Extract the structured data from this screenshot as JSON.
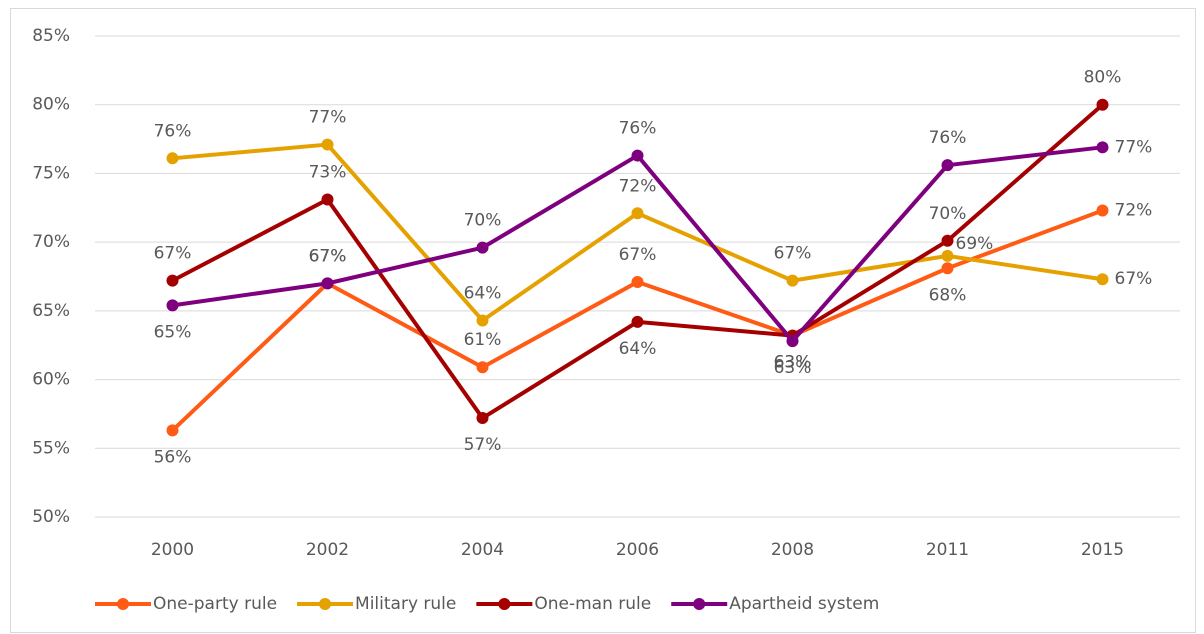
{
  "chart_data": {
    "type": "line",
    "categories": [
      "2000",
      "2002",
      "2004",
      "2006",
      "2008",
      "2011",
      "2015"
    ],
    "series": [
      {
        "name": "One-party rule",
        "color": "#ff5b14",
        "values": [
          56.3,
          67.0,
          60.9,
          67.1,
          63.2,
          68.1,
          72.3
        ],
        "value_labels": [
          "56%",
          "67%",
          "61%",
          "67%",
          "63%",
          "68%",
          "72%"
        ]
      },
      {
        "name": "Military rule",
        "color": "#e5a100",
        "values": [
          76.1,
          77.1,
          64.3,
          72.1,
          67.2,
          69.0,
          67.3
        ],
        "value_labels": [
          "76%",
          "77%",
          "64%",
          "72%",
          "67%",
          "69%",
          "67%"
        ]
      },
      {
        "name": "One-man rule",
        "color": "#a50000",
        "values": [
          67.2,
          73.1,
          57.2,
          64.2,
          63.2,
          70.1,
          80.0
        ],
        "value_labels": [
          "67%",
          "73%",
          "57%",
          "64%",
          "63%",
          "70%",
          "80%"
        ]
      },
      {
        "name": "Apartheid system",
        "color": "#7e007e",
        "values": [
          65.4,
          67.0,
          69.6,
          76.3,
          62.8,
          75.6,
          76.9
        ],
        "value_labels": [
          "65%",
          "67%",
          "70%",
          "76%",
          "63%",
          "76%",
          "77%"
        ]
      }
    ],
    "ylim": [
      50,
      85
    ],
    "yticks": [
      {
        "value": 50,
        "label": "50%"
      },
      {
        "value": 55,
        "label": "55%"
      },
      {
        "value": 60,
        "label": "60%"
      },
      {
        "value": 65,
        "label": "65%"
      },
      {
        "value": 70,
        "label": "70%"
      },
      {
        "value": 75,
        "label": "75%"
      },
      {
        "value": 80,
        "label": "80%"
      },
      {
        "value": 85,
        "label": "85%"
      }
    ],
    "grid": true,
    "legend": "bottom"
  }
}
